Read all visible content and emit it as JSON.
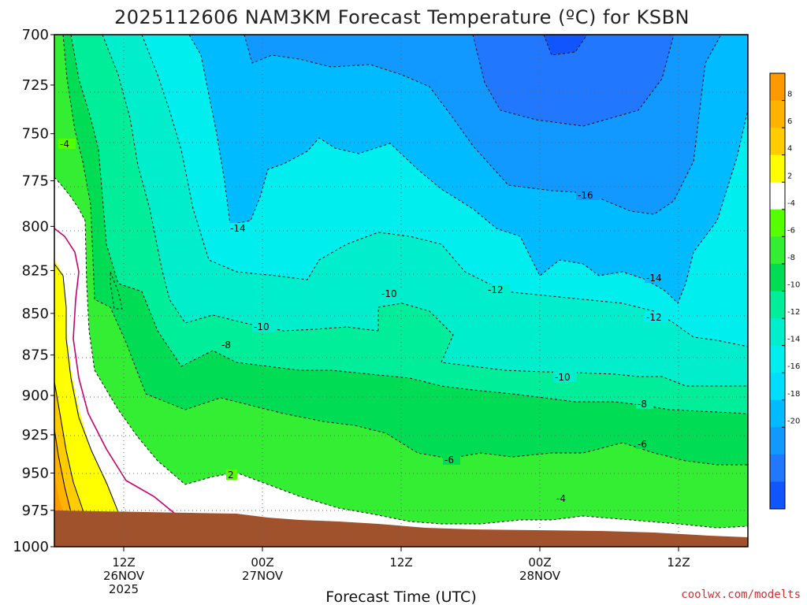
{
  "chart_data": {
    "type": "heatmap",
    "title": "2025112606 NAM3KM Forecast Temperature (ºC) for KSBN",
    "xlabel": "Forecast Time (UTC)",
    "ylabel": "",
    "y_ticks": [
      "700",
      "725",
      "750",
      "775",
      "800",
      "825",
      "850",
      "875",
      "900",
      "925",
      "950",
      "975",
      "1000"
    ],
    "ylim": [
      1000,
      700
    ],
    "x_ticks": [
      {
        "hour": 12,
        "line1": "12Z",
        "line2": "26NOV",
        "line3": "2025"
      },
      {
        "hour": 24,
        "line1": "00Z",
        "line2": "27NOV",
        "line3": ""
      },
      {
        "hour": 36,
        "line1": "12Z",
        "line2": "",
        "line3": ""
      },
      {
        "hour": 48,
        "line1": "00Z",
        "line2": "28NOV",
        "line3": ""
      },
      {
        "hour": 60,
        "line1": "12Z",
        "line2": "",
        "line3": ""
      }
    ],
    "xlim": [
      6,
      66
    ],
    "colorbar": {
      "ticks": [
        "8",
        "6",
        "4",
        "2",
        "-4",
        "-6",
        "-8",
        "-10",
        "-12",
        "-14",
        "-16",
        "-18",
        "-20"
      ],
      "colors": [
        "#ff9900",
        "#ffb300",
        "#ffcc00",
        "#ffff00",
        "#ffffff",
        "#55ff00",
        "#33ee33",
        "#00dd55",
        "#00ee99",
        "#00eecc",
        "#00eeee",
        "#00ddff",
        "#00bbff",
        "#1199ff",
        "#2277ff",
        "#1155ff"
      ]
    },
    "contour_labels": [
      "-4",
      "-14",
      "-10",
      "-12",
      "-10",
      "-8",
      "-16",
      "-14",
      "-12",
      "-10",
      "-8",
      "-6",
      "-6",
      "-4",
      "2"
    ],
    "credit": "coolwx.com/modelts"
  }
}
